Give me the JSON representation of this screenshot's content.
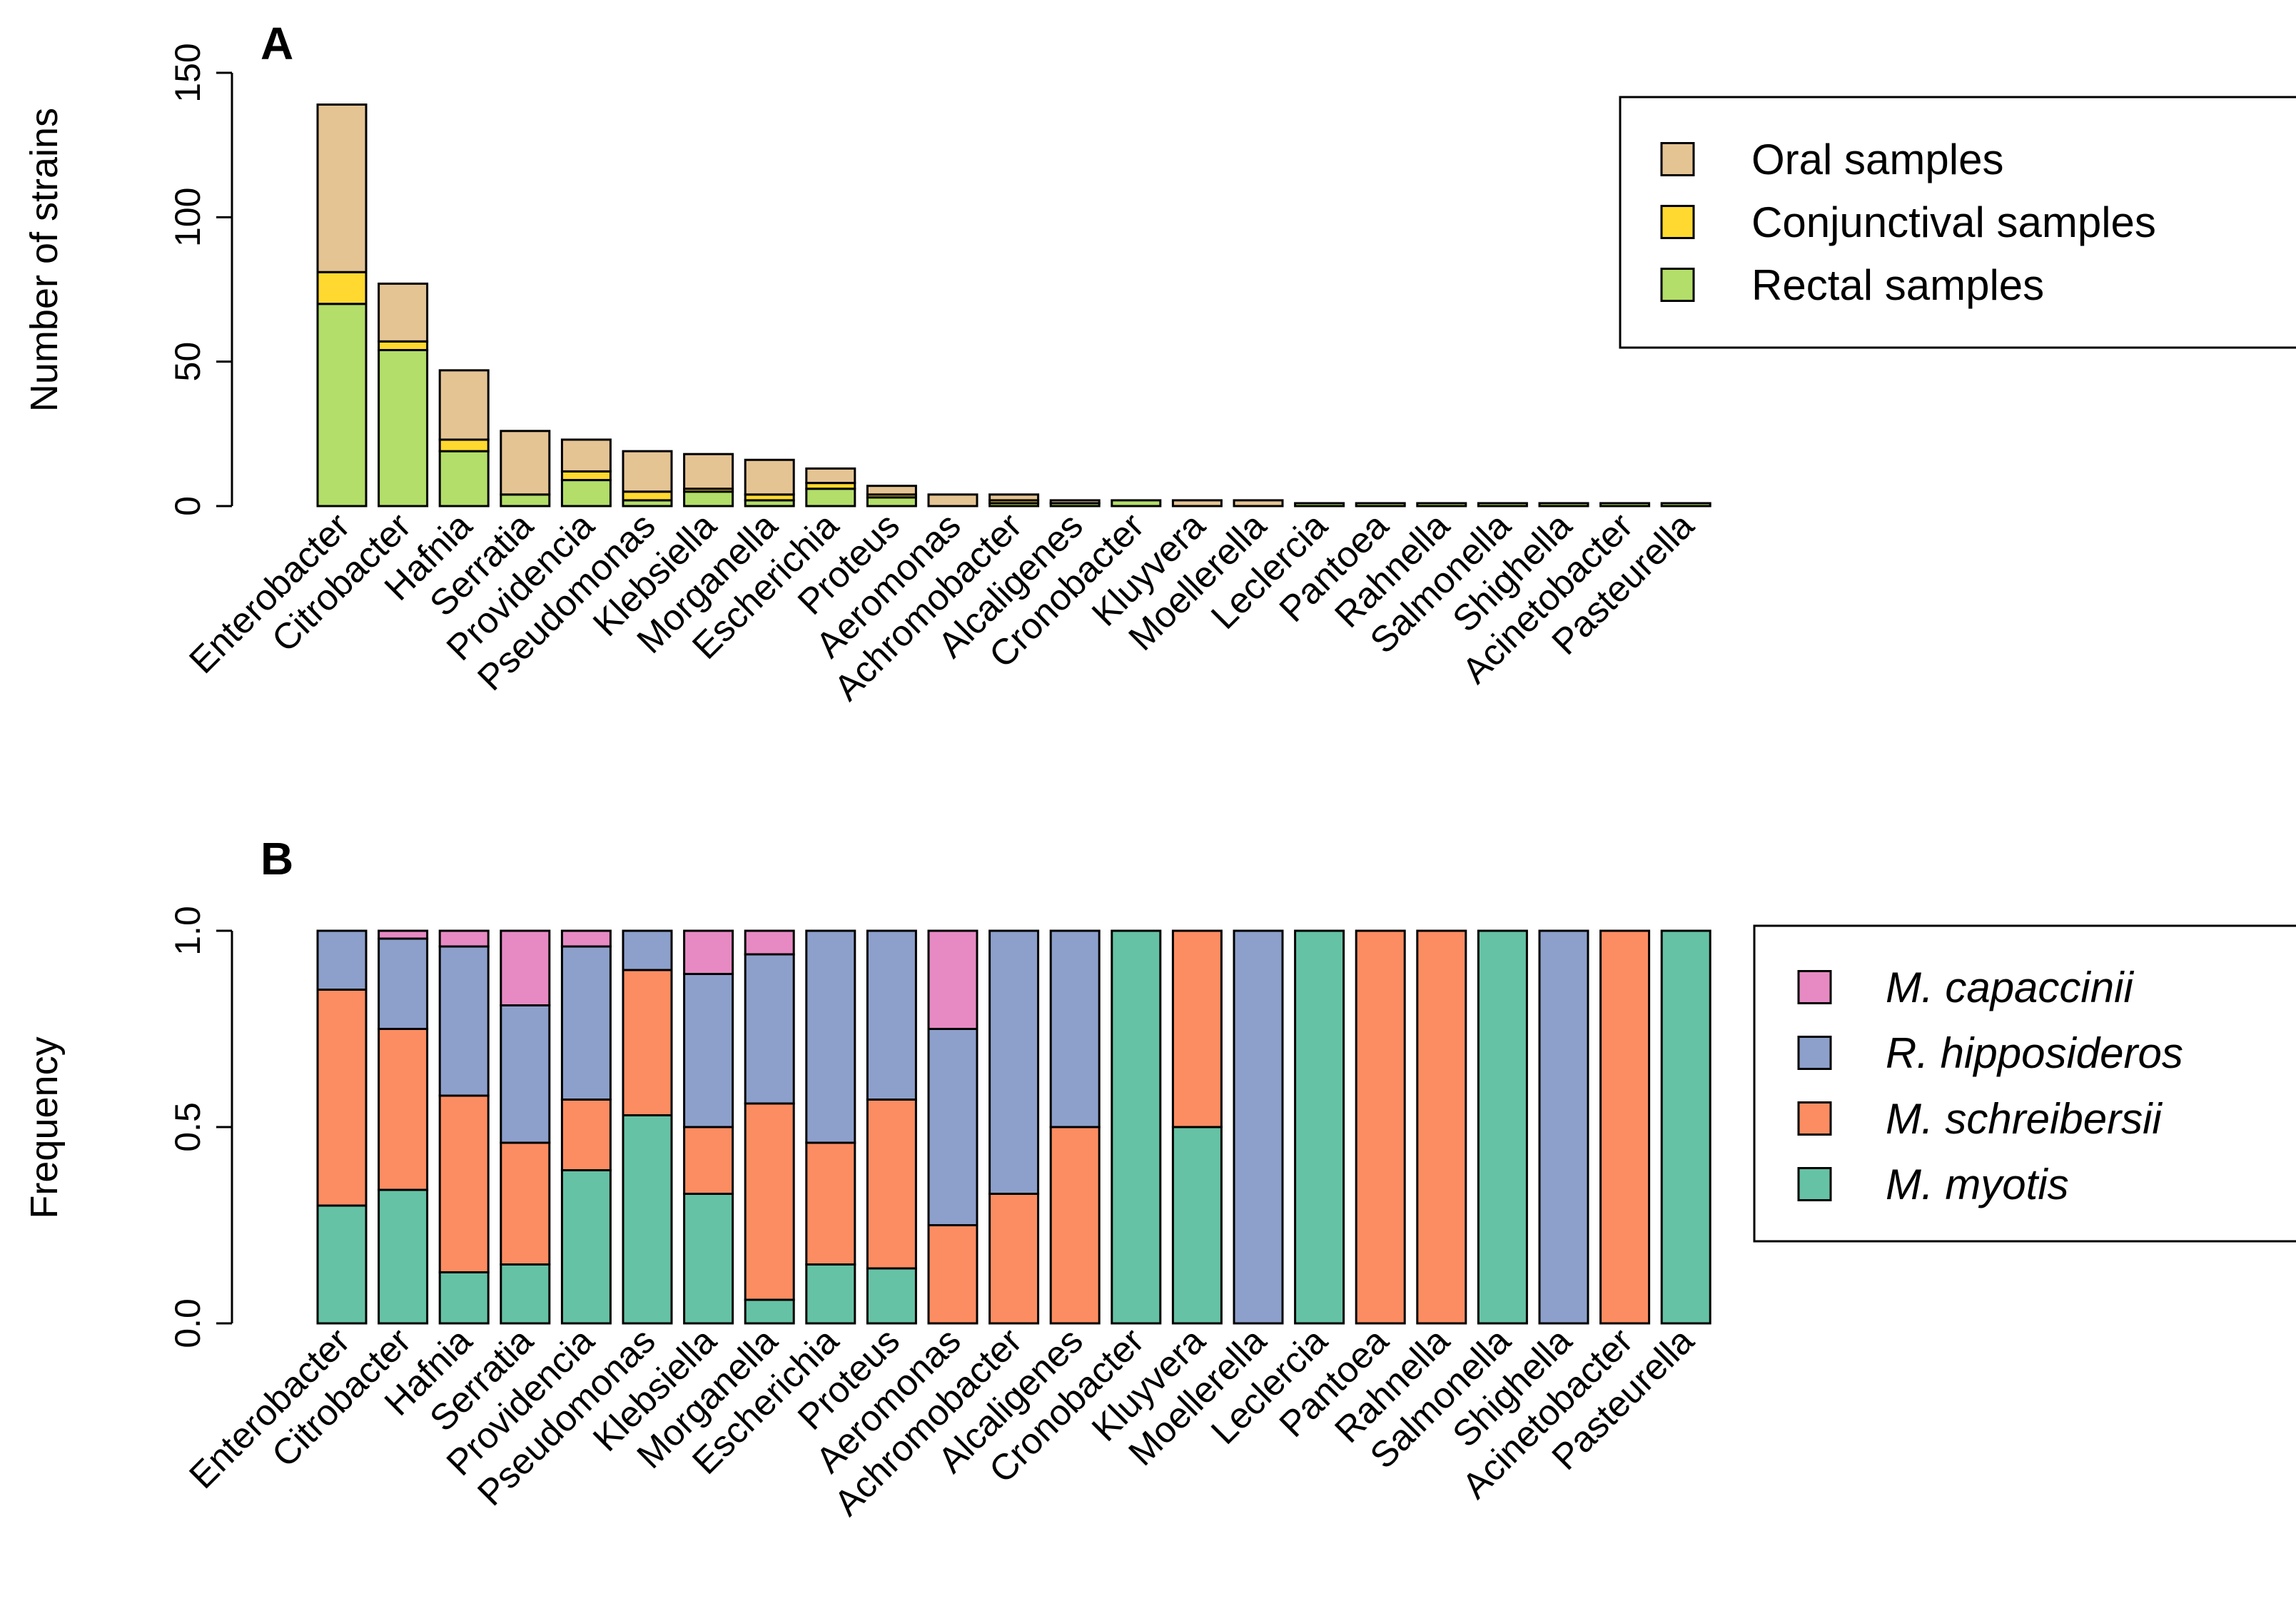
{
  "charts": [
    {
      "id": "A",
      "panel_label": "A",
      "chart_data": {
        "type": "bar",
        "stacked": true,
        "title": "",
        "xlabel": "",
        "ylabel": "Number of strains",
        "ylim": [
          0,
          150
        ],
        "yticks": [
          "0",
          "50",
          "100",
          "150"
        ],
        "categories": [
          "Enterobacter",
          "Citrobacter",
          "Hafnia",
          "Serratia",
          "Providencia",
          "Pseudomonas",
          "Klebsiella",
          "Morganella",
          "Escherichia",
          "Proteus",
          "Aeromonas",
          "Achromobacter",
          "Alcaligenes",
          "Cronobacter",
          "Kluyvera",
          "Moellerella",
          "Leclercia",
          "Pantoea",
          "Rahnella",
          "Salmonella",
          "Shighella",
          "Acinetobacter",
          "Pasteurella"
        ],
        "series": [
          {
            "name": "Rectal samples",
            "color": "#b3de69",
            "values": [
              70,
              54,
              19,
              4,
              9,
              2,
              5,
              2,
              6,
              3,
              0,
              1,
              1,
              2,
              0,
              0,
              1,
              1,
              1,
              1,
              1,
              1,
              1
            ]
          },
          {
            "name": "Conjunctival samples",
            "color": "#ffd92f",
            "values": [
              11,
              3,
              4,
              0,
              3,
              3,
              1,
              2,
              2,
              1,
              0,
              1,
              0,
              0,
              0,
              0,
              0,
              0,
              0,
              0,
              0,
              0,
              0
            ]
          },
          {
            "name": "Oral samples",
            "color": "#e5c494",
            "values": [
              58,
              20,
              24,
              22,
              11,
              14,
              12,
              12,
              5,
              3,
              4,
              2,
              1,
              0,
              2,
              2,
              0,
              0,
              0,
              0,
              0,
              0,
              0
            ]
          }
        ],
        "legend": {
          "position": "top-right",
          "order": [
            "Oral samples",
            "Conjunctival samples",
            "Rectal samples"
          ]
        },
        "grid": false
      }
    },
    {
      "id": "B",
      "panel_label": "B",
      "chart_data": {
        "type": "bar",
        "stacked": true,
        "title": "",
        "xlabel": "",
        "ylabel": "Frequency",
        "ylim": [
          0,
          1
        ],
        "yticks": [
          "0.0",
          "0.5",
          "1.0"
        ],
        "categories": [
          "Enterobacter",
          "Citrobacter",
          "Hafnia",
          "Serratia",
          "Providencia",
          "Pseudomonas",
          "Klebsiella",
          "Morganella",
          "Escherichia",
          "Proteus",
          "Aeromonas",
          "Achromobacter",
          "Alcaligenes",
          "Cronobacter",
          "Kluyvera",
          "Moellerella",
          "Leclercia",
          "Pantoea",
          "Rahnella",
          "Salmonella",
          "Shighella",
          "Acinetobacter",
          "Pasteurella"
        ],
        "series": [
          {
            "name": "M. myotis",
            "color": "#66c2a5",
            "values": [
              0.3,
              0.34,
              0.13,
              0.15,
              0.39,
              0.53,
              0.33,
              0.06,
              0.15,
              0.14,
              0,
              0,
              0,
              1,
              0.5,
              0,
              1,
              0,
              0,
              1,
              0,
              0,
              1
            ]
          },
          {
            "name": "M. schreibersii",
            "color": "#fc8d62",
            "values": [
              0.55,
              0.41,
              0.45,
              0.31,
              0.18,
              0.37,
              0.17,
              0.5,
              0.31,
              0.43,
              0.25,
              0.33,
              0.5,
              0,
              0.5,
              0,
              0,
              1,
              1,
              0,
              0,
              1,
              0
            ]
          },
          {
            "name": "R. hipposideros",
            "color": "#8da0cb",
            "values": [
              0.15,
              0.23,
              0.38,
              0.35,
              0.39,
              0.1,
              0.39,
              0.38,
              0.54,
              0.43,
              0.5,
              0.67,
              0.5,
              0,
              0,
              1,
              0,
              0,
              0,
              0,
              1,
              0,
              0
            ]
          },
          {
            "name": "M. capaccinii",
            "color": "#e78ac3",
            "values": [
              0,
              0.02,
              0.04,
              0.19,
              0.04,
              0,
              0.11,
              0.06,
              0,
              0,
              0.25,
              0,
              0,
              0,
              0,
              0,
              0,
              0,
              0,
              0,
              0,
              0,
              0
            ]
          }
        ],
        "legend": {
          "position": "right",
          "order": [
            "M. capaccinii",
            "R. hipposideros",
            "M. schreibersii",
            "M. myotis"
          ],
          "italic": true
        },
        "grid": false
      }
    }
  ]
}
